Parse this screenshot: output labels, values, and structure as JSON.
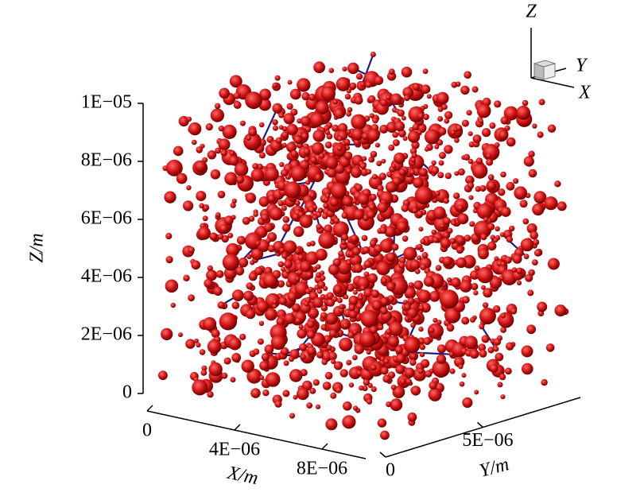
{
  "chart_data": {
    "type": "scatter3d",
    "xlabel": "X/m",
    "ylabel": "Y/m",
    "zlabel": "Z/m",
    "xlim": [
      0,
      1e-05
    ],
    "ylim": [
      0,
      1e-05
    ],
    "zlim": [
      0,
      1e-05
    ],
    "xticks": [
      0,
      {
        "value": 4e-06,
        "label": "4E−06"
      },
      {
        "value": 8e-06,
        "label": "8E−06"
      }
    ],
    "yticks": [
      0,
      {
        "value": 5e-06,
        "label": "5E−06"
      }
    ],
    "zticks": [
      0,
      {
        "value": 2e-06,
        "label": "2E−06"
      },
      {
        "value": 4e-06,
        "label": "4E−06"
      },
      {
        "value": 6e-06,
        "label": "6E−06"
      },
      {
        "value": 8e-06,
        "label": "8E−06"
      },
      {
        "value": 1e-05,
        "label": "1E−05"
      }
    ],
    "color": "#cc1111",
    "edge_color": "#1c1c80",
    "orientation_axes": {
      "z": "Z",
      "y": "Y",
      "x": "X"
    }
  }
}
